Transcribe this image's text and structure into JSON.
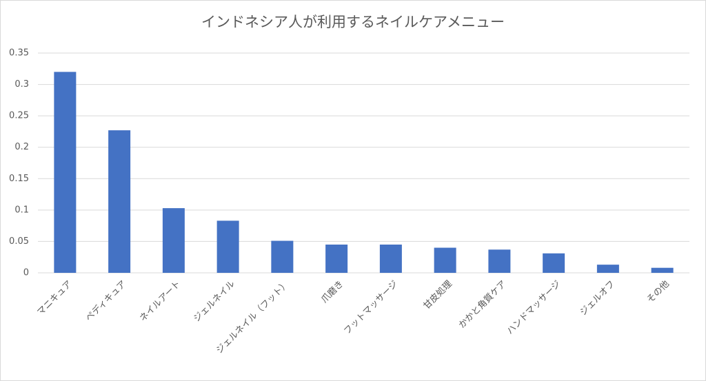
{
  "chart_data": {
    "type": "bar",
    "title": "インドネシア人が利用するネイルケアメニュー",
    "categories": [
      "マニキュア",
      "ペディキュア",
      "ネイルアート",
      "ジェルネイル",
      "ジェルネイル（フット）",
      "爪磨き",
      "フットマッサージ",
      "甘皮処理",
      "かかと角質ケア",
      "ハンドマッサージ",
      "ジェルオフ",
      "その他"
    ],
    "values": [
      0.32,
      0.227,
      0.103,
      0.083,
      0.051,
      0.045,
      0.045,
      0.04,
      0.037,
      0.031,
      0.013,
      0.008
    ],
    "color": "#4472c4",
    "ylim": [
      0,
      0.35
    ],
    "yticks": [
      0,
      0.05,
      0.1,
      0.15,
      0.2,
      0.25,
      0.3,
      0.35
    ],
    "grid": true
  }
}
